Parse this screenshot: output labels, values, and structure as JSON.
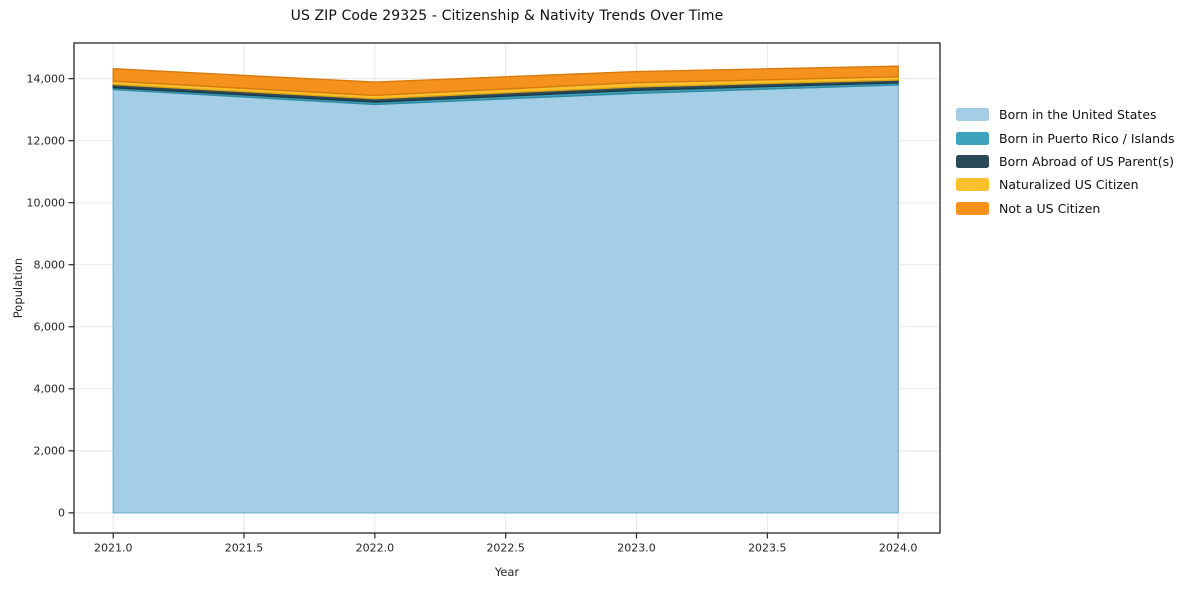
{
  "chart_data": {
    "type": "area",
    "stacked": true,
    "title": "US ZIP Code 29325 - Citizenship & Nativity Trends Over Time",
    "xlabel": "Year",
    "ylabel": "Population",
    "x": [
      2021,
      2022,
      2023,
      2024
    ],
    "series": [
      {
        "name": "Born in the United States",
        "values": [
          13650,
          13170,
          13530,
          13800
        ],
        "color": "#a3cee5",
        "edge_color": "#7fb7d5"
      },
      {
        "name": "Born in Puerto Rico / Islands",
        "values": [
          60,
          75,
          95,
          65
        ],
        "color": "#3fa3be",
        "edge_color": "#2e8ba3"
      },
      {
        "name": "Born Abroad of US Parent(s)",
        "values": [
          100,
          110,
          110,
          90
        ],
        "color": "#2a4a5a",
        "edge_color": "#1e3a48"
      },
      {
        "name": "Naturalized US Citizen",
        "values": [
          110,
          105,
          140,
          105
        ],
        "color": "#fbc02d",
        "edge_color": "#e2a410"
      },
      {
        "name": "Not a US Citizen",
        "values": [
          400,
          430,
          355,
          345
        ],
        "color": "#f5921e",
        "edge_color": "#d67a0e"
      }
    ],
    "xlim": [
      2020.85,
      2024.16
    ],
    "ylim": [
      -650,
      15150
    ],
    "xtick_values": [
      2021.0,
      2021.5,
      2022.0,
      2022.5,
      2023.0,
      2023.5,
      2024.0
    ],
    "xtick_labels": [
      "2021.0",
      "2021.5",
      "2022.0",
      "2022.5",
      "2023.0",
      "2023.5",
      "2024.0"
    ],
    "ytick_values": [
      0,
      2000,
      4000,
      6000,
      8000,
      10000,
      12000,
      14000
    ],
    "ytick_labels": [
      "0",
      "2,000",
      "4,000",
      "6,000",
      "8,000",
      "10,000",
      "12,000",
      "14,000"
    ],
    "grid": true,
    "legend_position": "outside-right",
    "axis_color": "#262626",
    "grid_color": "#e8e8e8",
    "background_color": "#ffffff"
  }
}
